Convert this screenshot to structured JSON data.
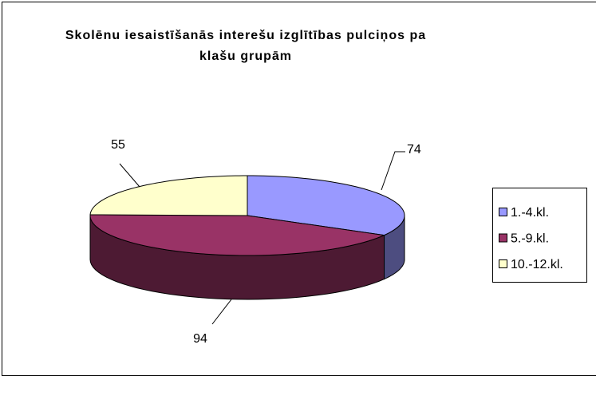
{
  "chart_data": {
    "type": "pie3d",
    "title": "Skolēnu iesaistīšanās interešu izglītības pulciņos pa klašu grupām",
    "categories": [
      "1.-4.kl.",
      "5.-9.kl.",
      "10.-12.kl."
    ],
    "values": [
      74,
      94,
      55
    ],
    "colors": [
      "#9999ff",
      "#993366",
      "#ffffcc"
    ],
    "legend": "right"
  }
}
